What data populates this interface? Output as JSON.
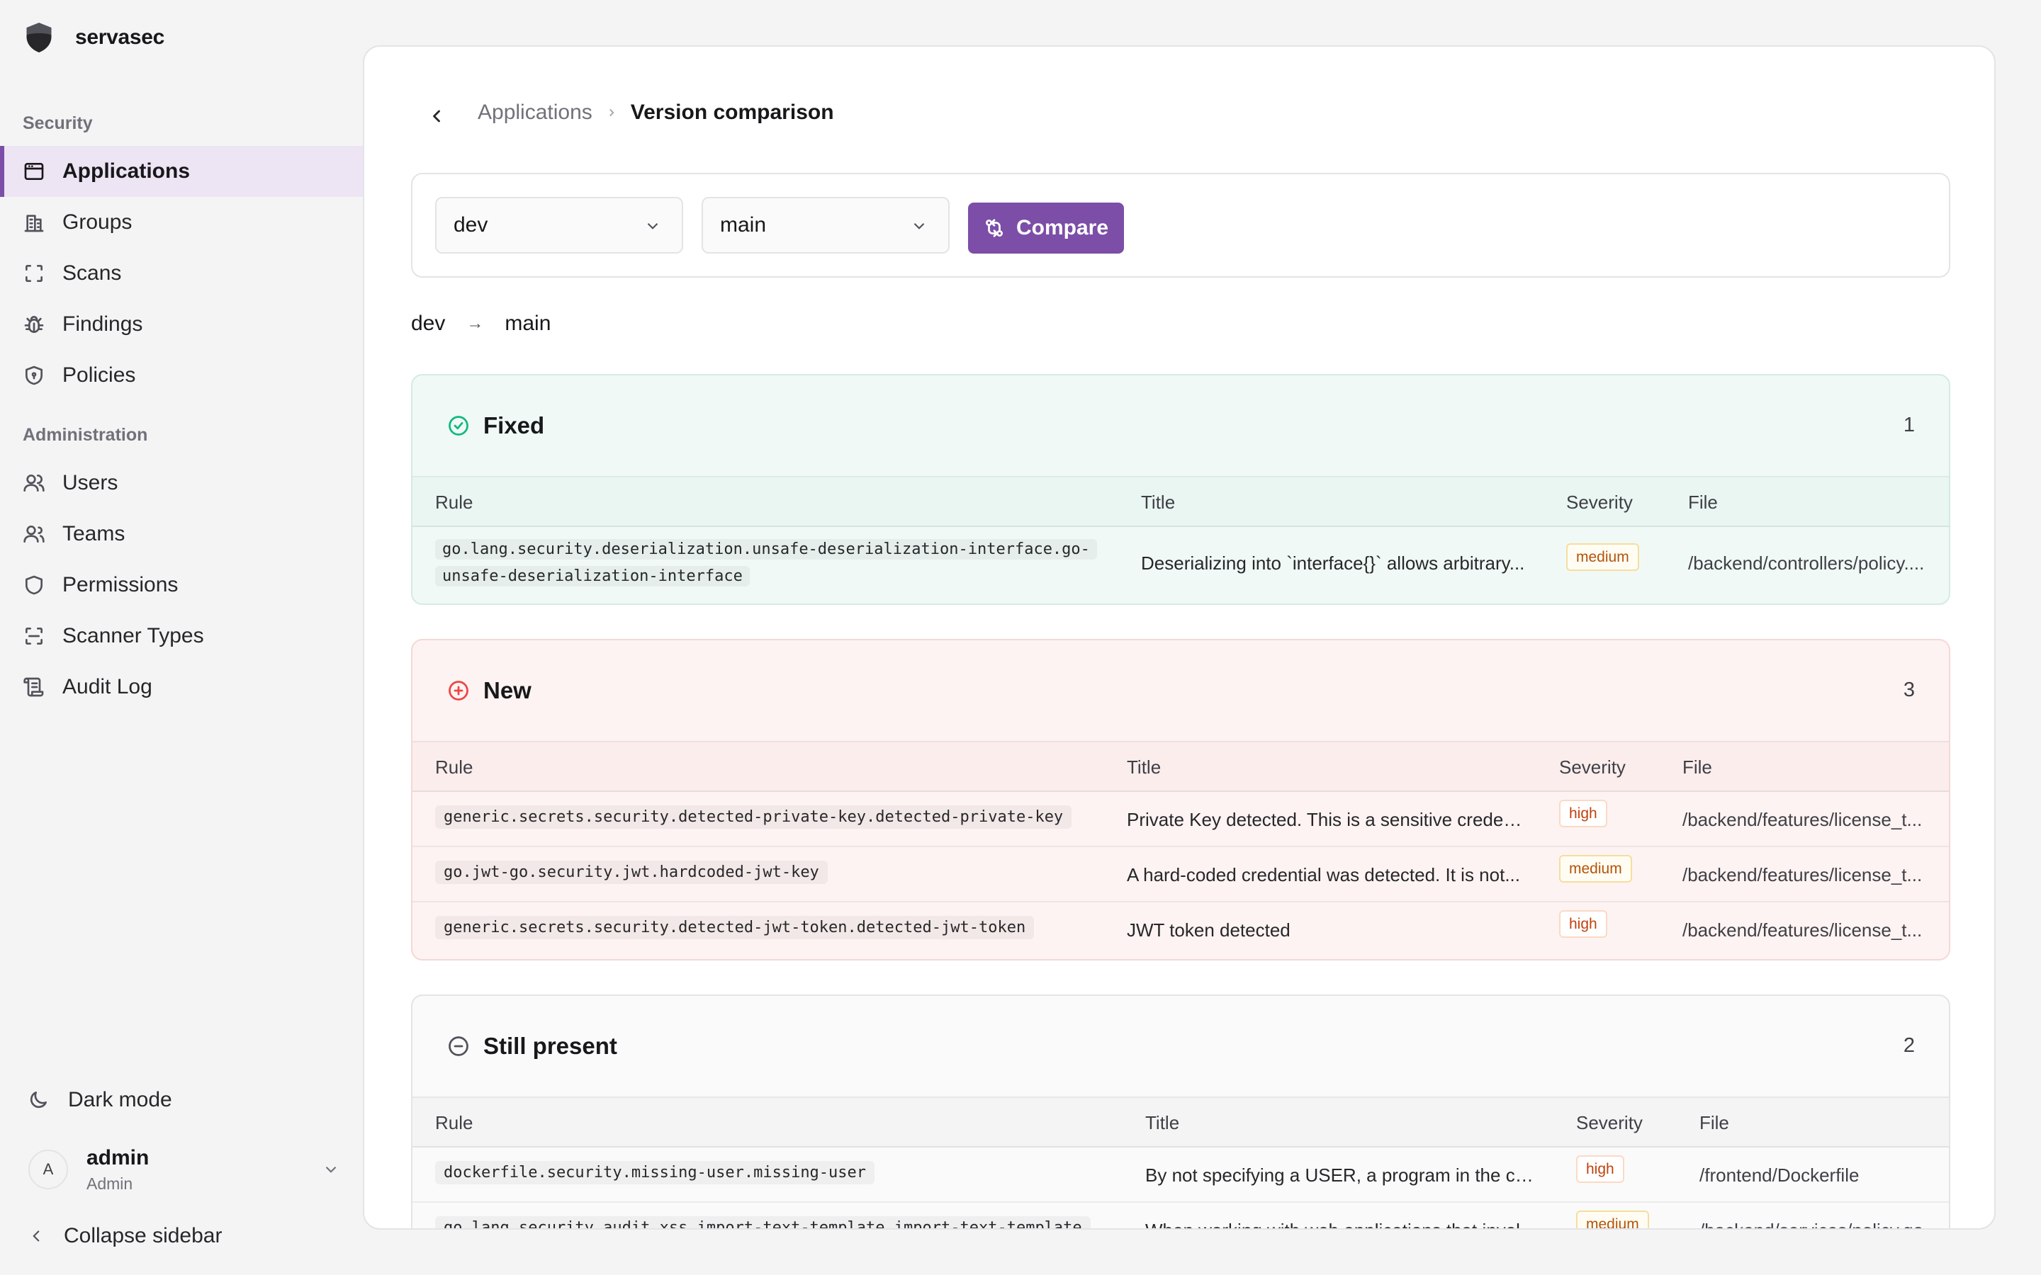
{
  "app": {
    "name": "servasec"
  },
  "sidebar": {
    "sections": [
      "Security",
      "Administration"
    ],
    "security_items": [
      {
        "label": "Applications",
        "icon": "window-icon",
        "active": true
      },
      {
        "label": "Groups",
        "icon": "building-icon"
      },
      {
        "label": "Scans",
        "icon": "scan-icon"
      },
      {
        "label": "Findings",
        "icon": "bug-icon"
      },
      {
        "label": "Policies",
        "icon": "shield-icon"
      }
    ],
    "admin_items": [
      {
        "label": "Users",
        "icon": "user-icon"
      },
      {
        "label": "Teams",
        "icon": "users-icon"
      },
      {
        "label": "Permissions",
        "icon": "shield-icon"
      },
      {
        "label": "Scanner Types",
        "icon": "scan-line-icon"
      },
      {
        "label": "Audit Log",
        "icon": "scroll-icon"
      }
    ],
    "dark_mode_label": "Dark mode",
    "user": {
      "initial": "A",
      "name": "admin",
      "role": "Admin"
    },
    "collapse_label": "Collapse sidebar"
  },
  "breadcrumb": {
    "parent": "Applications",
    "current": "Version comparison"
  },
  "toolbar": {
    "from_value": "dev",
    "to_value": "main",
    "compare_label": "Compare",
    "accent": "#7c4ea7"
  },
  "comparison": {
    "from": "dev",
    "arrow": "→",
    "to": "main"
  },
  "columns": {
    "rule": "Rule",
    "title": "Title",
    "severity": "Severity",
    "file": "File"
  },
  "sections": {
    "fixed": {
      "title": "Fixed",
      "count": "1",
      "color": "#10b981",
      "rows": [
        {
          "rule": "go.lang.security.deserialization.unsafe-deserialization-interface.go-unsafe-deserialization-interface",
          "title": "Deserializing into `interface{}` allows arbitrary...",
          "severity": "medium",
          "file": "/backend/controllers/policy...."
        }
      ]
    },
    "new": {
      "title": "New",
      "count": "3",
      "color": "#ef4444",
      "rows": [
        {
          "rule": "generic.secrets.security.detected-private-key.detected-private-key",
          "title": "Private Key detected. This is a sensitive creden...",
          "severity": "high",
          "file": "/backend/features/license_t..."
        },
        {
          "rule": "go.jwt-go.security.jwt.hardcoded-jwt-key",
          "title": "A hard-coded credential was detected. It is not...",
          "severity": "medium",
          "file": "/backend/features/license_t..."
        },
        {
          "rule": "generic.secrets.security.detected-jwt-token.detected-jwt-token",
          "title": "JWT token detected",
          "severity": "high",
          "file": "/backend/features/license_t..."
        }
      ]
    },
    "still": {
      "title": "Still present",
      "count": "2",
      "color": "#52525b",
      "rows": [
        {
          "rule": "dockerfile.security.missing-user.missing-user",
          "title": "By not specifying a USER, a program in the con...",
          "severity": "high",
          "file": "/frontend/Dockerfile"
        },
        {
          "rule": "go.lang.security.audit.xss.import-text-template.import-text-template",
          "title": "When working with web applications that invol...",
          "severity": "medium",
          "file": "/backend/services/policy.go"
        }
      ]
    }
  }
}
